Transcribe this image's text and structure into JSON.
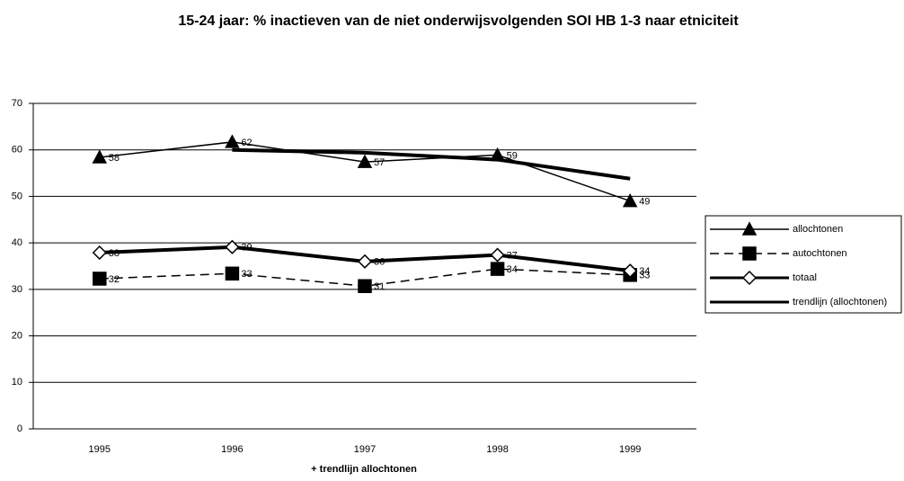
{
  "chart_data": {
    "type": "line",
    "title": "15-24 jaar: % inactieven van de niet onderwijsvolgenden SOI HB 1-3 naar etniciteit",
    "xlabel": "+ trendlijn allochtonen",
    "categories": [
      "1995",
      "1996",
      "1997",
      "1998",
      "1999"
    ],
    "series": [
      {
        "name": "allochtonen",
        "color": "#000000",
        "width": 1.5,
        "dash": false,
        "marker": "triangle",
        "values": [
          58.4,
          61.7,
          57.4,
          58.9,
          49.0
        ],
        "value_labels": [
          "58",
          "62",
          "57",
          "59",
          "49"
        ]
      },
      {
        "name": "autochtonen",
        "color": "#000000",
        "width": 1.5,
        "dash": true,
        "marker": "square",
        "values": [
          32.3,
          33.4,
          30.7,
          34.4,
          33.1
        ],
        "value_labels": [
          "32",
          "33",
          "31",
          "34",
          "33"
        ]
      },
      {
        "name": "totaal",
        "color": "#000000",
        "width": 4,
        "dash": false,
        "marker": "diamond",
        "values": [
          37.9,
          39.1,
          36.0,
          37.4,
          34.0
        ],
        "value_labels": [
          "38",
          "39",
          "36",
          "37",
          "34"
        ]
      },
      {
        "name": "trendlijn (allochtonen)",
        "color": "#000000",
        "width": 4,
        "dash": false,
        "marker": "none",
        "values": [
          null,
          60.0,
          59.4,
          57.9,
          53.8
        ]
      }
    ],
    "ylim": [
      0,
      70
    ],
    "yticks": [
      0,
      10,
      20,
      30,
      40,
      50,
      60,
      70
    ],
    "grid": true,
    "legend": "right"
  }
}
